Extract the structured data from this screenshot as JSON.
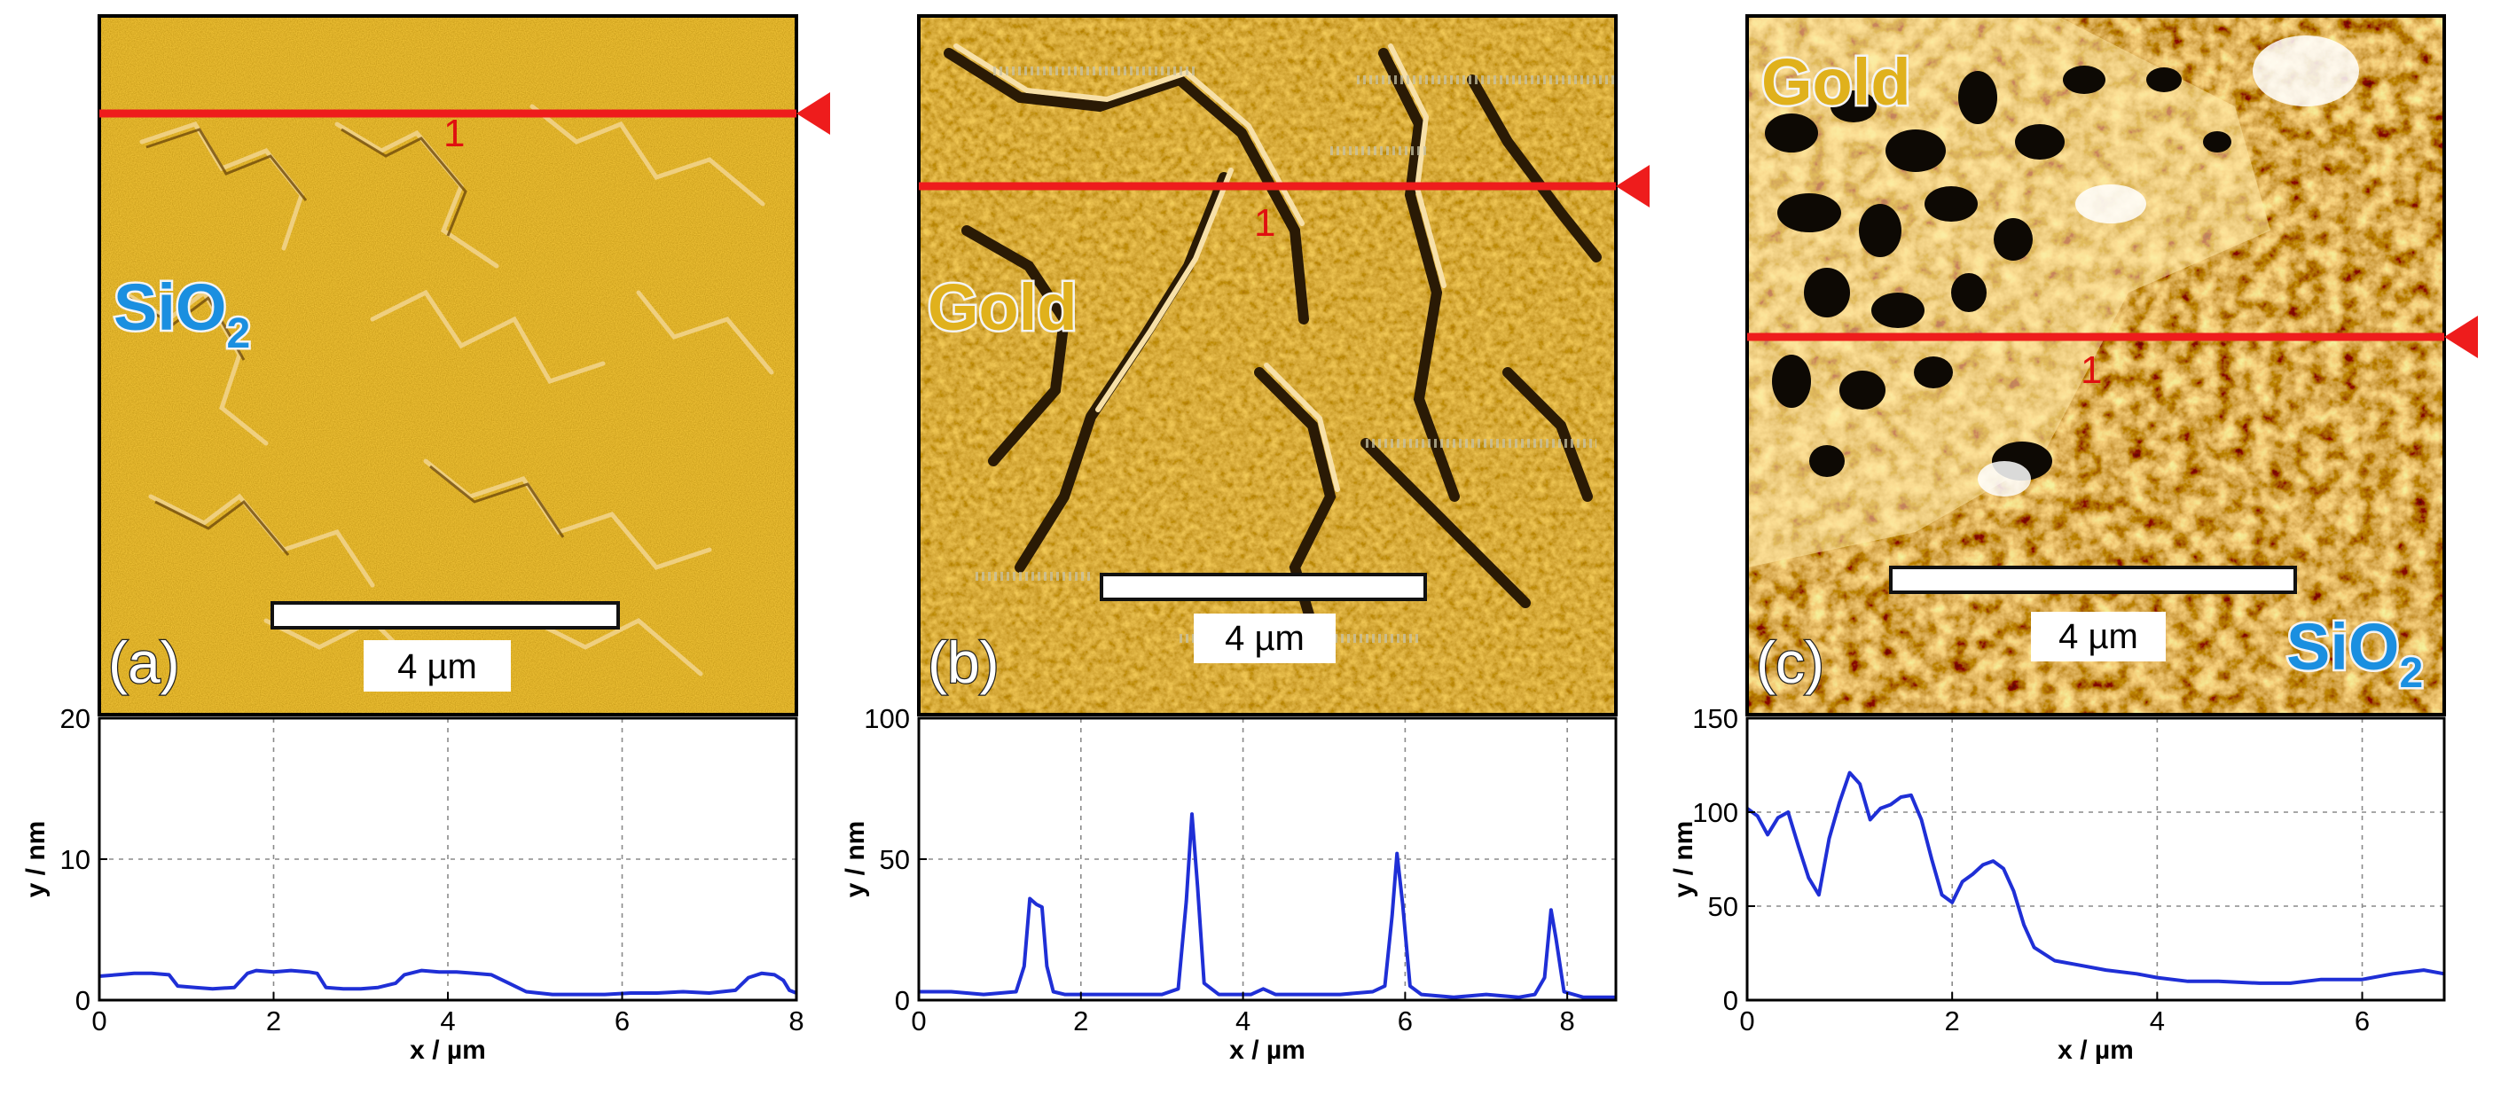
{
  "colors": {
    "trace": "#1f2fd6",
    "marker_line": "#ee1c1c",
    "sio2_label": "#1a8fe0",
    "gold_label": "#e0b11c"
  },
  "panels": [
    {
      "id": "a",
      "panel_label": "(a)",
      "scale_bar_label": "4 µm",
      "marker_label": "1",
      "materials": [
        {
          "text": "SiO",
          "sub": "2",
          "color": "#1a8fe0"
        }
      ]
    },
    {
      "id": "b",
      "panel_label": "(b)",
      "scale_bar_label": "4 µm",
      "marker_label": "1",
      "materials": [
        {
          "text": "Gold",
          "sub": "",
          "color": "#e0b11c"
        }
      ]
    },
    {
      "id": "c",
      "panel_label": "(c)",
      "scale_bar_label": "4 µm",
      "marker_label": "1",
      "materials": [
        {
          "text": "Gold",
          "sub": "",
          "color": "#e0b11c"
        },
        {
          "text": "SiO",
          "sub": "2",
          "color": "#1a8fe0"
        }
      ]
    }
  ],
  "chart_data": [
    {
      "type": "line",
      "xlabel": "x / µm",
      "ylabel": "y / nm",
      "xlim": [
        0,
        8
      ],
      "ylim": [
        0,
        20
      ],
      "xticks": [
        0,
        2,
        4,
        6,
        8
      ],
      "yticks": [
        0,
        10,
        20
      ],
      "grid": true,
      "series": [
        {
          "name": "profile 1",
          "x": [
            0,
            0.2,
            0.4,
            0.6,
            0.8,
            0.9,
            1.1,
            1.3,
            1.55,
            1.7,
            1.8,
            2.0,
            2.2,
            2.4,
            2.5,
            2.6,
            2.8,
            3.0,
            3.2,
            3.4,
            3.5,
            3.7,
            3.9,
            4.1,
            4.3,
            4.5,
            4.7,
            4.9,
            5.2,
            5.5,
            5.8,
            6.1,
            6.4,
            6.7,
            7.0,
            7.3,
            7.45,
            7.6,
            7.75,
            7.85,
            7.92,
            8.0
          ],
          "y": [
            1.7,
            1.8,
            1.9,
            1.9,
            1.8,
            1.0,
            0.9,
            0.8,
            0.9,
            1.9,
            2.1,
            2.0,
            2.1,
            2.0,
            1.9,
            0.9,
            0.8,
            0.8,
            0.9,
            1.2,
            1.8,
            2.1,
            2.0,
            2.0,
            1.9,
            1.8,
            1.2,
            0.6,
            0.4,
            0.4,
            0.4,
            0.5,
            0.5,
            0.6,
            0.5,
            0.7,
            1.6,
            1.9,
            1.8,
            1.4,
            0.7,
            0.5
          ]
        }
      ]
    },
    {
      "type": "line",
      "xlabel": "x / µm",
      "ylabel": "y / nm",
      "xlim": [
        0,
        8.6
      ],
      "ylim": [
        0,
        100
      ],
      "xticks": [
        0,
        2,
        4,
        6,
        8
      ],
      "yticks": [
        0,
        50,
        100
      ],
      "grid": true,
      "series": [
        {
          "name": "profile 1",
          "x": [
            0,
            0.4,
            0.8,
            1.2,
            1.3,
            1.37,
            1.45,
            1.52,
            1.58,
            1.66,
            1.8,
            2.2,
            2.6,
            3.0,
            3.2,
            3.3,
            3.37,
            3.44,
            3.52,
            3.7,
            4.1,
            4.25,
            4.4,
            4.8,
            5.2,
            5.6,
            5.75,
            5.84,
            5.9,
            5.97,
            6.06,
            6.2,
            6.6,
            7.0,
            7.4,
            7.6,
            7.72,
            7.8,
            7.86,
            7.96,
            8.2,
            8.6
          ],
          "y": [
            3,
            3,
            2,
            3,
            12,
            36,
            34,
            33,
            12,
            3,
            2,
            2,
            2,
            2,
            4,
            35,
            66,
            40,
            6,
            2,
            2,
            4,
            2,
            2,
            2,
            3,
            5,
            30,
            52,
            34,
            5,
            2,
            1,
            2,
            1,
            2,
            8,
            32,
            22,
            3,
            1,
            1
          ]
        }
      ]
    },
    {
      "type": "line",
      "xlabel": "x / µm",
      "ylabel": "y / nm",
      "xlim": [
        0,
        6.8
      ],
      "ylim": [
        0,
        150
      ],
      "xticks": [
        0,
        2,
        4,
        6
      ],
      "yticks": [
        0,
        50,
        100,
        150
      ],
      "grid": true,
      "series": [
        {
          "name": "profile 1",
          "x": [
            0,
            0.1,
            0.2,
            0.3,
            0.4,
            0.5,
            0.6,
            0.7,
            0.8,
            0.9,
            1.0,
            1.1,
            1.2,
            1.3,
            1.4,
            1.5,
            1.6,
            1.7,
            1.8,
            1.9,
            2.0,
            2.1,
            2.2,
            2.3,
            2.4,
            2.5,
            2.6,
            2.7,
            2.8,
            3.0,
            3.2,
            3.5,
            3.8,
            4.0,
            4.3,
            4.6,
            5.0,
            5.3,
            5.6,
            6.0,
            6.3,
            6.6,
            6.8
          ],
          "y": [
            102,
            98,
            88,
            97,
            100,
            82,
            65,
            56,
            86,
            105,
            121,
            115,
            96,
            102,
            104,
            108,
            109,
            96,
            75,
            56,
            52,
            63,
            67,
            72,
            74,
            70,
            58,
            40,
            28,
            21,
            19,
            16,
            14,
            12,
            10,
            10,
            9,
            9,
            11,
            11,
            14,
            16,
            14
          ]
        }
      ]
    }
  ]
}
